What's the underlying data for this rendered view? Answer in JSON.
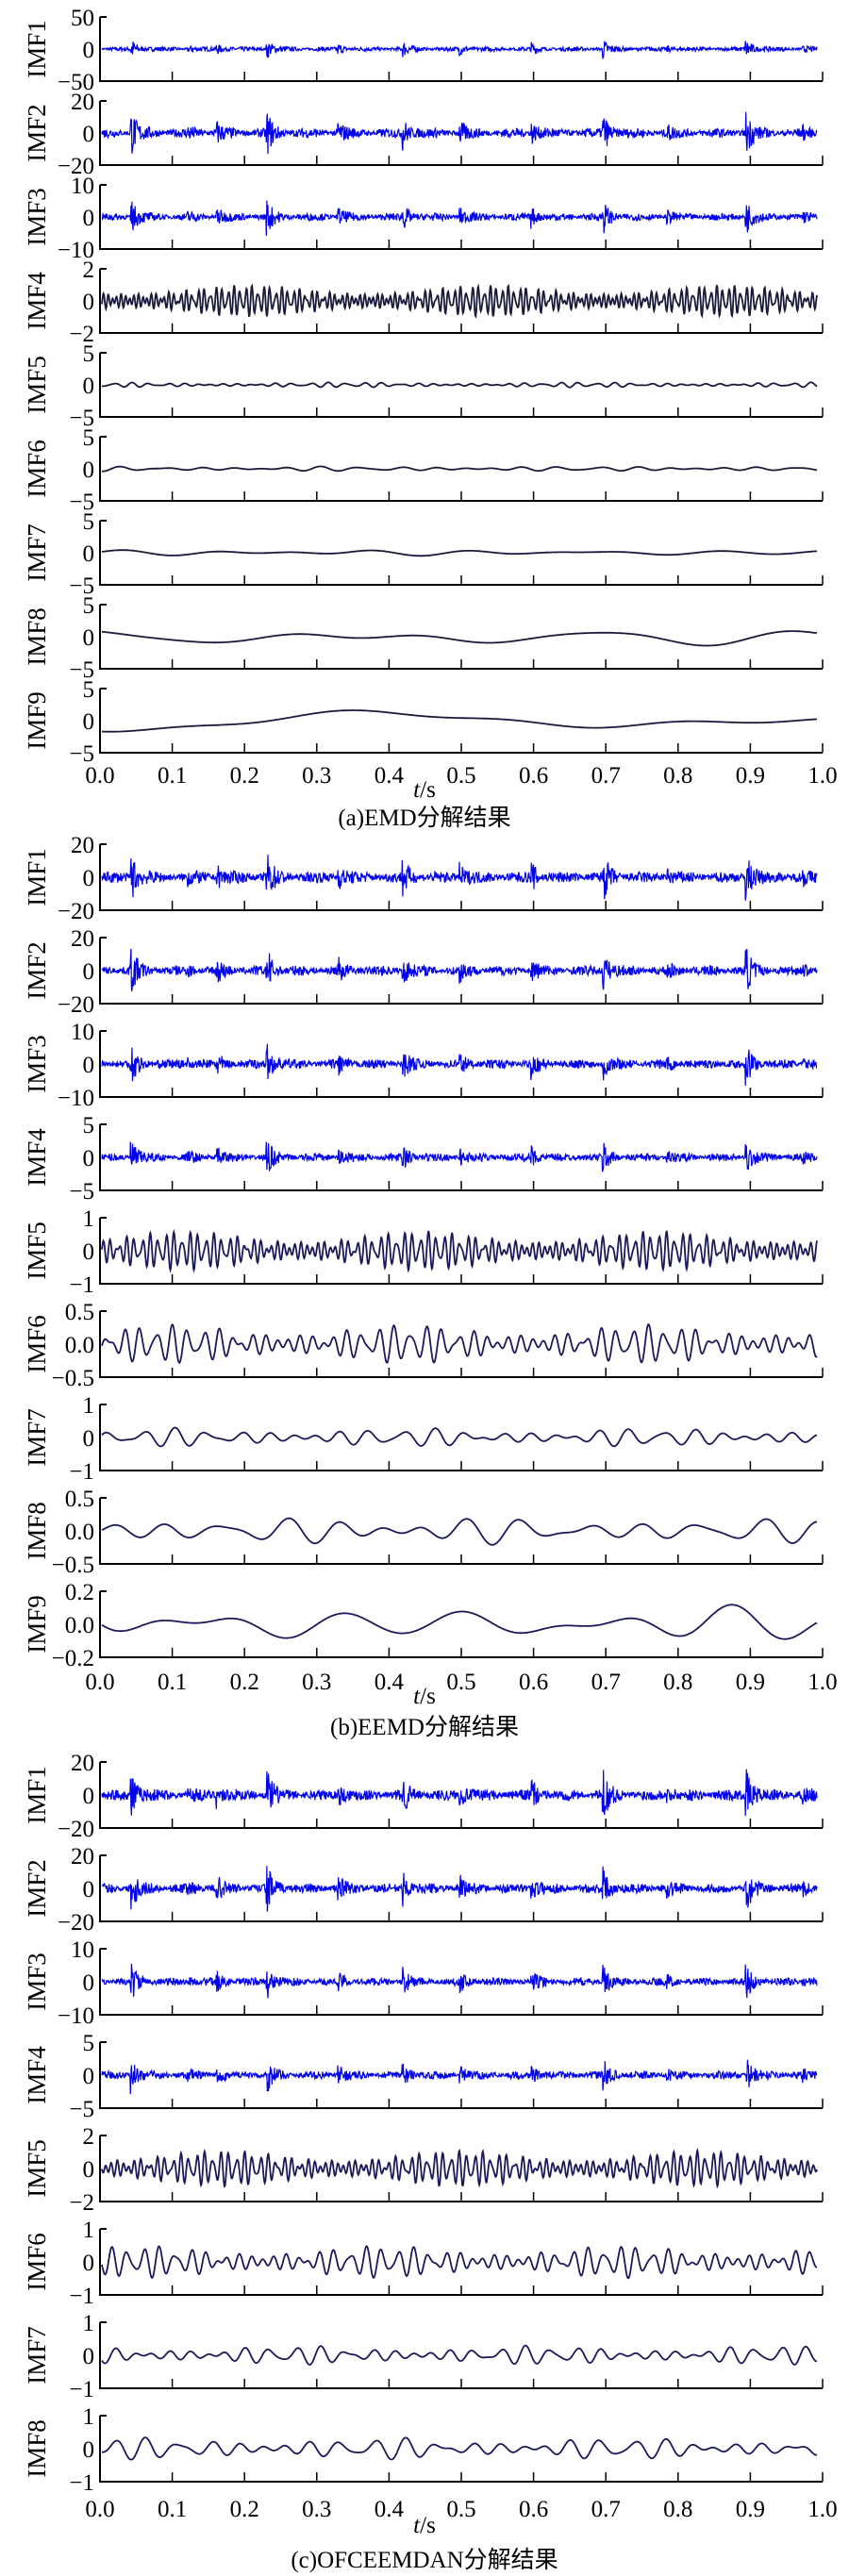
{
  "chart_data": [
    {
      "type": "line",
      "title": "(a)EMD分解结果",
      "xlabel_italic": "t",
      "xlabel_unit": "/s",
      "xlim": [
        0,
        1
      ],
      "xticks": [
        "0.0",
        "0.1",
        "0.2",
        "0.3",
        "0.4",
        "0.5",
        "0.6",
        "0.7",
        "0.8",
        "0.9",
        "1.0"
      ],
      "series": [
        {
          "name": "IMF1",
          "ylim": [
            -50,
            50
          ],
          "yticks": [
            "50",
            "0",
            "−50"
          ],
          "kind": "burst",
          "amp": 0.35,
          "color": "#0000ee"
        },
        {
          "name": "IMF2",
          "ylim": [
            -20,
            20
          ],
          "yticks": [
            "20",
            "0",
            "−20"
          ],
          "kind": "burst",
          "amp": 0.75,
          "color": "#0000ee"
        },
        {
          "name": "IMF3",
          "ylim": [
            -10,
            10
          ],
          "yticks": [
            "10",
            "0",
            "−10"
          ],
          "kind": "burst",
          "amp": 0.6,
          "color": "#0000ee"
        },
        {
          "name": "IMF4",
          "ylim": [
            -2,
            2
          ],
          "yticks": [
            "2",
            "0",
            "−2"
          ],
          "kind": "osc",
          "cycles": 120,
          "amp": 0.5,
          "color": "#1a1a3a"
        },
        {
          "name": "IMF5",
          "ylim": [
            -5,
            5
          ],
          "yticks": [
            "5",
            "0",
            "−5"
          ],
          "kind": "osc",
          "cycles": 40,
          "amp": 0.08,
          "color": "#1a1a3a"
        },
        {
          "name": "IMF6",
          "ylim": [
            -5,
            5
          ],
          "yticks": [
            "5",
            "0",
            "−5"
          ],
          "kind": "osc",
          "cycles": 18,
          "amp": 0.08,
          "color": "#1a1a3a"
        },
        {
          "name": "IMF7",
          "ylim": [
            -5,
            5
          ],
          "yticks": [
            "5",
            "0",
            "−5"
          ],
          "kind": "osc",
          "cycles": 6,
          "amp": 0.1,
          "color": "#1a1a3a"
        },
        {
          "name": "IMF8",
          "ylim": [
            -5,
            5
          ],
          "yticks": [
            "5",
            "0",
            "−5"
          ],
          "kind": "osc",
          "cycles": 3,
          "amp": 0.3,
          "color": "#1a1a3a"
        },
        {
          "name": "IMF9",
          "ylim": [
            -5,
            5
          ],
          "yticks": [
            "5",
            "0",
            "−5"
          ],
          "kind": "osc",
          "cycles": 1.3,
          "amp": 0.45,
          "color": "#1a1a3a"
        }
      ]
    },
    {
      "type": "line",
      "title": "(b)EEMD分解结果",
      "xlabel_italic": "t",
      "xlabel_unit": "/s",
      "xlim": [
        0,
        1
      ],
      "xticks": [
        "0.0",
        "0.1",
        "0.2",
        "0.3",
        "0.4",
        "0.5",
        "0.6",
        "0.7",
        "0.8",
        "0.9",
        "1.0"
      ],
      "series": [
        {
          "name": "IMF1",
          "ylim": [
            -20,
            20
          ],
          "yticks": [
            "20",
            "0",
            "−20"
          ],
          "kind": "burst",
          "amp": 0.85,
          "color": "#0000ee"
        },
        {
          "name": "IMF2",
          "ylim": [
            -20,
            20
          ],
          "yticks": [
            "20",
            "0",
            "−20"
          ],
          "kind": "burst",
          "amp": 0.75,
          "color": "#0000ee"
        },
        {
          "name": "IMF3",
          "ylim": [
            -10,
            10
          ],
          "yticks": [
            "10",
            "0",
            "−10"
          ],
          "kind": "burst",
          "amp": 0.7,
          "color": "#0000ee"
        },
        {
          "name": "IMF4",
          "ylim": [
            -5,
            5
          ],
          "yticks": [
            "5",
            "0",
            "−5"
          ],
          "kind": "burst",
          "amp": 0.6,
          "color": "#0000ee"
        },
        {
          "name": "IMF5",
          "ylim": [
            -1,
            1
          ],
          "yticks": [
            "1",
            "0",
            "−1"
          ],
          "kind": "osc",
          "cycles": 90,
          "amp": 0.6,
          "color": "#1a1a5a"
        },
        {
          "name": "IMF6",
          "ylim": [
            -0.5,
            0.5
          ],
          "yticks": [
            "0.5",
            "0.0",
            "−0.5"
          ],
          "kind": "osc",
          "cycles": 45,
          "amp": 0.6,
          "color": "#1a1a5a"
        },
        {
          "name": "IMF7",
          "ylim": [
            -1,
            1
          ],
          "yticks": [
            "1",
            "0",
            "−1"
          ],
          "kind": "osc",
          "cycles": 22,
          "amp": 0.3,
          "color": "#1a1a5a"
        },
        {
          "name": "IMF8",
          "ylim": [
            -0.5,
            0.5
          ],
          "yticks": [
            "0.5",
            "0.0",
            "−0.5"
          ],
          "kind": "osc",
          "cycles": 12,
          "amp": 0.45,
          "color": "#1a1a5a"
        },
        {
          "name": "IMF9",
          "ylim": [
            -0.2,
            0.2
          ],
          "yticks": [
            "0.2",
            "0.0",
            "−0.2"
          ],
          "kind": "osc",
          "cycles": 5.5,
          "amp": 0.6,
          "color": "#1a1a5a"
        }
      ]
    },
    {
      "type": "line",
      "title": "(c)OFCEEMDAN分解结果",
      "xlabel_italic": "t",
      "xlabel_unit": "/s",
      "xlim": [
        0,
        1
      ],
      "xticks": [
        "0.0",
        "0.1",
        "0.2",
        "0.3",
        "0.4",
        "0.5",
        "0.6",
        "0.7",
        "0.8",
        "0.9",
        "1.0"
      ],
      "series": [
        {
          "name": "IMF1",
          "ylim": [
            -20,
            20
          ],
          "yticks": [
            "20",
            "0",
            "−20"
          ],
          "kind": "burst",
          "amp": 0.85,
          "color": "#0000ee"
        },
        {
          "name": "IMF2",
          "ylim": [
            -20,
            20
          ],
          "yticks": [
            "20",
            "0",
            "−20"
          ],
          "kind": "burst",
          "amp": 0.75,
          "color": "#0000ee"
        },
        {
          "name": "IMF3",
          "ylim": [
            -10,
            10
          ],
          "yticks": [
            "10",
            "0",
            "−10"
          ],
          "kind": "burst",
          "amp": 0.6,
          "color": "#0000ee"
        },
        {
          "name": "IMF4",
          "ylim": [
            -5,
            5
          ],
          "yticks": [
            "5",
            "0",
            "−5"
          ],
          "kind": "burst",
          "amp": 0.6,
          "color": "#0000ee"
        },
        {
          "name": "IMF5",
          "ylim": [
            -2,
            2
          ],
          "yticks": [
            "2",
            "0",
            "−2"
          ],
          "kind": "osc",
          "cycles": 90,
          "amp": 0.55,
          "color": "#1a1a5a"
        },
        {
          "name": "IMF6",
          "ylim": [
            -1,
            1
          ],
          "yticks": [
            "1",
            "0",
            "−1"
          ],
          "kind": "osc",
          "cycles": 45,
          "amp": 0.5,
          "color": "#1a1a5a"
        },
        {
          "name": "IMF7",
          "ylim": [
            -1,
            1
          ],
          "yticks": [
            "1",
            "0",
            "−1"
          ],
          "kind": "osc",
          "cycles": 28,
          "amp": 0.3,
          "color": "#1a1a5a"
        },
        {
          "name": "IMF8",
          "ylim": [
            -1,
            1
          ],
          "yticks": [
            "1",
            "0",
            "−1"
          ],
          "kind": "osc",
          "cycles": 22,
          "amp": 0.35,
          "color": "#1a1a5a"
        }
      ]
    }
  ]
}
